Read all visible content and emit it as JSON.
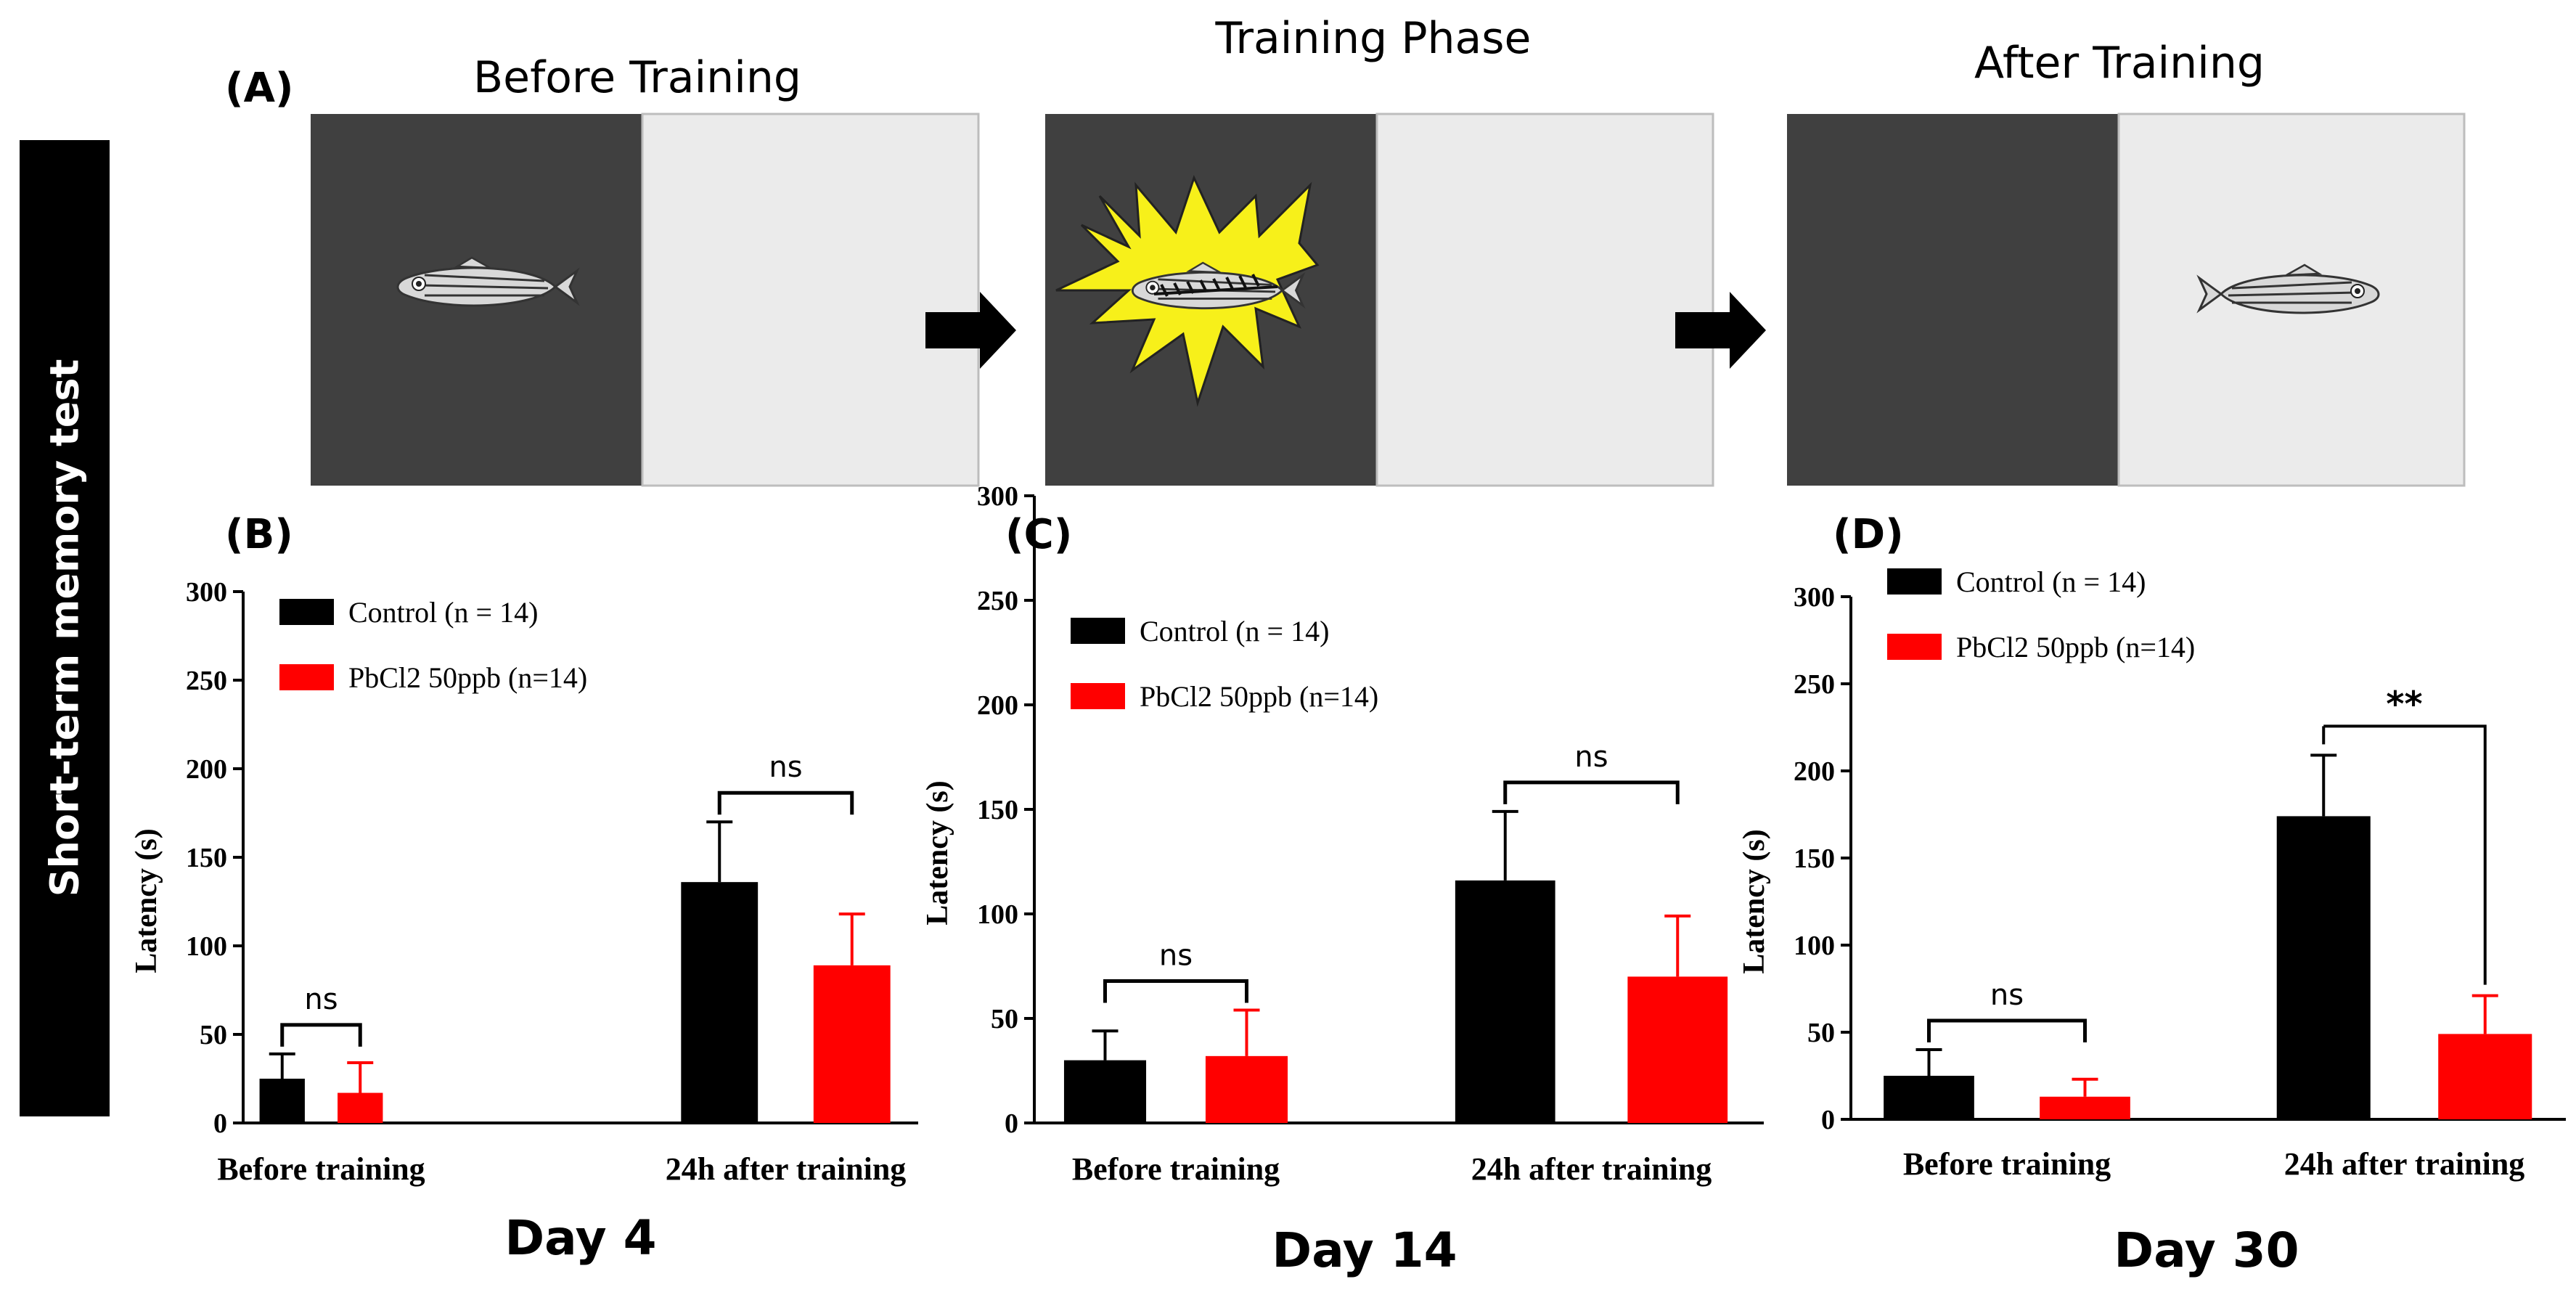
{
  "side_label": "Short-term memory test",
  "panel_a": {
    "label": "(A)",
    "stages": [
      {
        "title": "Before Training"
      },
      {
        "title": "Training Phase"
      },
      {
        "title": "After Training"
      }
    ]
  },
  "significance_label": "ns",
  "colors": {
    "control": "#000000",
    "treatment": "#ff0000",
    "dark_zone": "#404040",
    "light_zone": "#ebebeb",
    "shock": "#f7f01a"
  },
  "chart_data": [
    {
      "type": "bar",
      "panel_label": "(B)",
      "title": "Day 4",
      "xlabel": "",
      "ylabel": "Latency (s)",
      "ylim": [
        0,
        300
      ],
      "yticks": [
        0,
        50,
        100,
        150,
        200,
        250,
        300
      ],
      "categories": [
        "Before training",
        "24h after training"
      ],
      "legend_position": "top-left",
      "series": [
        {
          "name": "Control (n = 14)",
          "values": [
            25,
            136
          ],
          "errors": [
            14,
            34
          ]
        },
        {
          "name": "PbCl2 50ppb (n=14)",
          "values": [
            17,
            89
          ],
          "errors": [
            17,
            29
          ]
        }
      ],
      "annotations": [
        "ns",
        "ns"
      ]
    },
    {
      "type": "bar",
      "panel_label": "(C)",
      "title": "Day 14",
      "xlabel": "",
      "ylabel": "Latency (s)",
      "ylim": [
        0,
        300
      ],
      "yticks": [
        0,
        50,
        100,
        150,
        200,
        250,
        300
      ],
      "categories": [
        "Before training",
        "24h after training"
      ],
      "legend_position": "top-left",
      "series": [
        {
          "name": "Control (n = 14)",
          "values": [
            30,
            116
          ],
          "errors": [
            14,
            33
          ]
        },
        {
          "name": "PbCl2 50ppb (n=14)",
          "values": [
            32,
            70
          ],
          "errors": [
            22,
            29
          ]
        }
      ],
      "annotations": [
        "ns",
        "ns"
      ]
    },
    {
      "type": "bar",
      "panel_label": "(D)",
      "title": "Day 30",
      "xlabel": "",
      "ylabel": "Latency (s)",
      "ylim": [
        0,
        300
      ],
      "yticks": [
        0,
        50,
        100,
        150,
        200,
        250,
        300
      ],
      "categories": [
        "Before training",
        "24h after training"
      ],
      "legend_position": "top-left",
      "series": [
        {
          "name": "Control (n = 14)",
          "values": [
            25,
            174
          ],
          "errors": [
            15,
            35
          ]
        },
        {
          "name": "PbCl2 50ppb (n=14)",
          "values": [
            13,
            49
          ],
          "errors": [
            10,
            22
          ]
        }
      ],
      "annotations": [
        "ns",
        "**"
      ]
    }
  ]
}
